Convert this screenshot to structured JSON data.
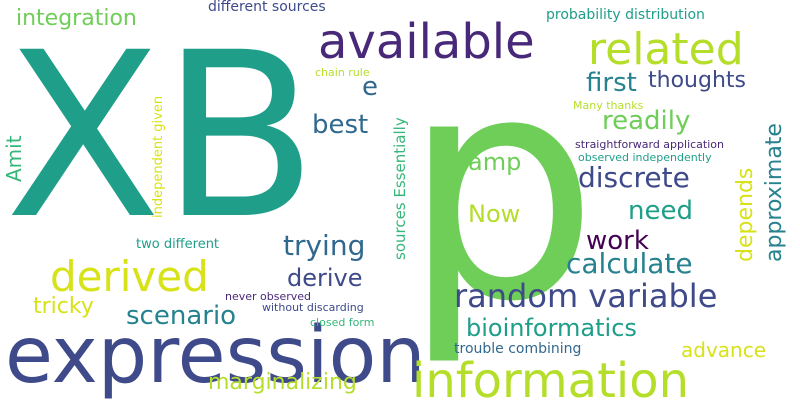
{
  "words": [
    {
      "text": "XB",
      "color": "#1f9e89"
    },
    {
      "text": "p",
      "color": "#6ece58"
    },
    {
      "text": "expression",
      "color": "#3e4a89"
    },
    {
      "text": "information",
      "color": "#b5de2b"
    },
    {
      "text": "available",
      "color": "#482878"
    },
    {
      "text": "related",
      "color": "#b5de2b"
    },
    {
      "text": "derived",
      "color": "#d8e219"
    },
    {
      "text": "random variable",
      "color": "#3e4a89"
    },
    {
      "text": "integration",
      "color": "#6ece58"
    },
    {
      "text": "bioinformatics",
      "color": "#1f9e89"
    },
    {
      "text": "first",
      "color": "#26828e"
    },
    {
      "text": "thoughts",
      "color": "#3e4a89"
    },
    {
      "text": "best",
      "color": "#31688e"
    },
    {
      "text": "readily",
      "color": "#6ece58"
    },
    {
      "text": "discrete",
      "color": "#3e4a89"
    },
    {
      "text": "need",
      "color": "#1f9e89"
    },
    {
      "text": "work",
      "color": "#440154"
    },
    {
      "text": "calculate",
      "color": "#26828e"
    },
    {
      "text": "trying",
      "color": "#31688e"
    },
    {
      "text": "derive",
      "color": "#3e4a89"
    },
    {
      "text": "scenario",
      "color": "#26828e"
    },
    {
      "text": "marginalizing",
      "color": "#b5de2b"
    },
    {
      "text": "advance",
      "color": "#d8e219"
    },
    {
      "text": "tricky",
      "color": "#d8e219"
    },
    {
      "text": "amp",
      "color": "#6ece58"
    },
    {
      "text": "Now",
      "color": "#b5de2b"
    },
    {
      "text": "e",
      "color": "#31688e"
    },
    {
      "text": "Amit",
      "color": "#35b779"
    },
    {
      "text": "different sources",
      "color": "#3e4a89"
    },
    {
      "text": "probability distribution",
      "color": "#1f9e89"
    },
    {
      "text": "chain rule",
      "color": "#b5de2b"
    },
    {
      "text": "Many thanks",
      "color": "#b5de2b"
    },
    {
      "text": "straightforward application",
      "color": "#482878"
    },
    {
      "text": "observed independently",
      "color": "#1f9e89"
    },
    {
      "text": "two different",
      "color": "#1f9e89"
    },
    {
      "text": "never observed",
      "color": "#482878"
    },
    {
      "text": "without discarding",
      "color": "#3e4a89"
    },
    {
      "text": "closed form",
      "color": "#35b779"
    },
    {
      "text": "trouble combining",
      "color": "#31688e"
    },
    {
      "text": "approximate",
      "color": "#26828e"
    },
    {
      "text": "depends",
      "color": "#d8e219"
    },
    {
      "text": "independent given",
      "color": "#d8e219"
    },
    {
      "text": "sources Essentially",
      "color": "#35b779"
    }
  ]
}
